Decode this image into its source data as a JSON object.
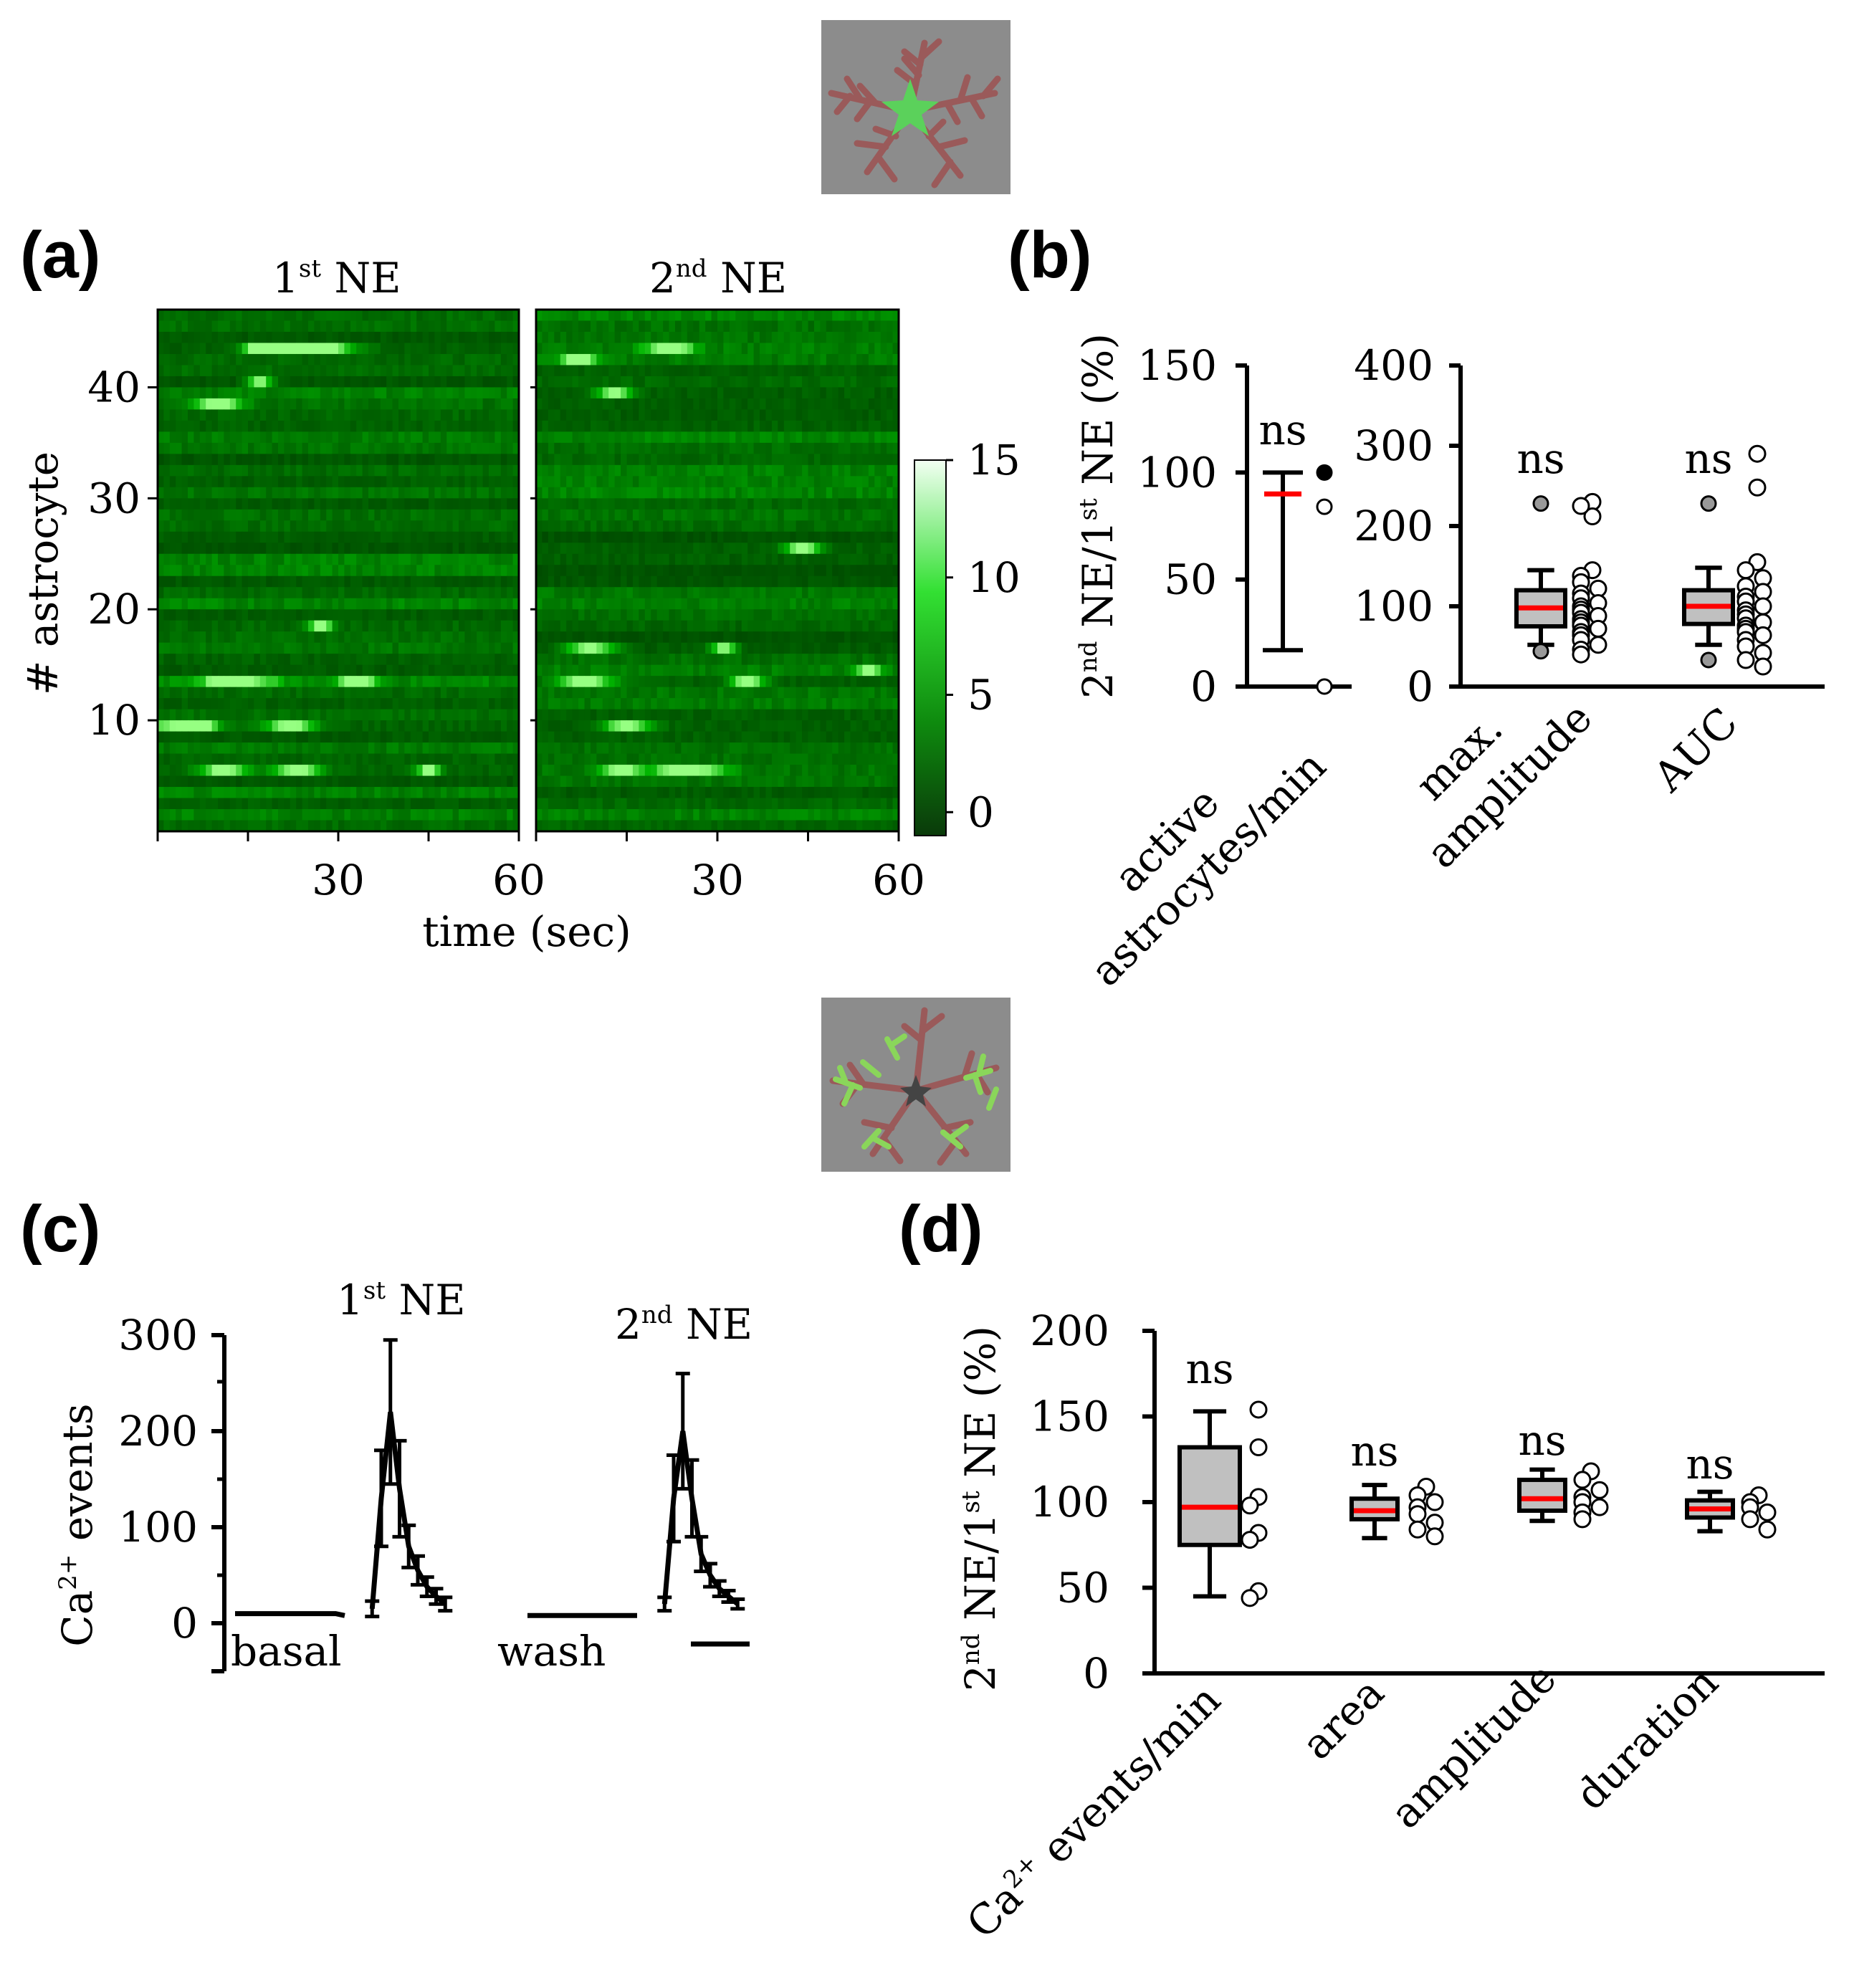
{
  "panels": {
    "a": "(a)",
    "b": "(b)",
    "c": "(c)",
    "d": "(d)"
  },
  "colors": {
    "heat_dark": "#0a3a0a",
    "heat_bright": "#49ff49",
    "median": "#ff0000",
    "box_fill": "#c0c0c0",
    "icon_bg": "#8c8c8c",
    "icon_process": "#9a5a5a",
    "icon_green": "#5bd15b"
  },
  "icons": {
    "top": "astrocyte-soma-icon",
    "bottom": "astrocyte-process-icon"
  },
  "chart_data": [
    {
      "id": "a",
      "type": "heatmap",
      "titles": [
        "1st NE",
        "2nd NE"
      ],
      "title_base": [
        "1",
        "2"
      ],
      "title_sup": [
        "st",
        "nd"
      ],
      "title_rest": [
        " NE",
        " NE"
      ],
      "ylabel": "# astrocyte",
      "xlabel": "time (sec)",
      "xlim": [
        0,
        60
      ],
      "ylim": [
        0,
        47
      ],
      "xticks": [
        0,
        15,
        30,
        45,
        60
      ],
      "xtick_labels": [
        "30",
        "60"
      ],
      "ytick_labels": [
        "10",
        "20",
        "30",
        "40"
      ],
      "yticks": [
        10,
        20,
        30,
        40
      ],
      "n_astrocytes": 47,
      "colorbar": {
        "min": -1,
        "max": 15,
        "tick_labels": [
          "0",
          "5",
          "10",
          "15"
        ],
        "ticks": [
          0,
          5,
          10,
          15
        ]
      },
      "hotspots_1st": [
        [
          7,
          10,
          2
        ],
        [
          17,
          41,
          2
        ],
        [
          4,
          10,
          6
        ],
        [
          22,
          10,
          4
        ],
        [
          13,
          14,
          6
        ],
        [
          10,
          39,
          4
        ],
        [
          20,
          44,
          5
        ],
        [
          11,
          6,
          4
        ],
        [
          23,
          6,
          4
        ],
        [
          27,
          19,
          2
        ],
        [
          45,
          6,
          2
        ],
        [
          33,
          14,
          3
        ],
        [
          18,
          44,
          3
        ],
        [
          28,
          44,
          5
        ]
      ],
      "hotspots_2nd": [
        [
          7,
          43,
          3
        ],
        [
          22,
          44,
          4
        ],
        [
          8,
          14,
          5
        ],
        [
          25,
          6,
          6
        ],
        [
          15,
          10,
          4
        ],
        [
          13,
          40,
          3
        ],
        [
          44,
          26,
          3
        ],
        [
          9,
          17,
          4
        ],
        [
          35,
          14,
          3
        ],
        [
          55,
          15,
          2
        ],
        [
          31,
          17,
          2
        ],
        [
          14,
          6,
          3
        ]
      ]
    },
    {
      "id": "b",
      "type": "box",
      "ylabel_parts": [
        "2",
        "nd",
        " NE/1",
        "st",
        " NE (%)"
      ],
      "subplots": [
        {
          "ylim": [
            0,
            150
          ],
          "yticks": [
            0,
            50,
            100,
            150
          ],
          "ytick_labels": [
            "0",
            "50",
            "100",
            "150"
          ],
          "groups": [
            {
              "label_lines": [
                "active",
                "astrocytes/min"
              ],
              "sig": "ns",
              "min": 17,
              "max": 100,
              "median": 90,
              "points": [
                100,
                84,
                0
              ],
              "filled_point": 100
            }
          ]
        },
        {
          "ylim": [
            0,
            400
          ],
          "yticks": [
            0,
            100,
            200,
            300,
            400
          ],
          "ytick_labels": [
            "0",
            "100",
            "200",
            "300",
            "400"
          ],
          "groups": [
            {
              "label_lines": [
                "max.",
                "amplitude"
              ],
              "sig": "ns",
              "whisker_low": 52,
              "q1": 75,
              "median": 98,
              "q3": 120,
              "whisker_high": 145,
              "outliers": [
                228,
                44
              ],
              "points": [
                230,
                212,
                225,
                145,
                138,
                130,
                122,
                116,
                110,
                104,
                100,
                96,
                92,
                88,
                84,
                80,
                76,
                72,
                68,
                64,
                58,
                52,
                46,
                40
              ]
            },
            {
              "label_lines": [
                "AUC"
              ],
              "sig": "ns",
              "whisker_low": 52,
              "q1": 78,
              "median": 100,
              "q3": 120,
              "whisker_high": 148,
              "outliers": [
                228,
                33
              ],
              "points": [
                290,
                248,
                155,
                145,
                135,
                125,
                118,
                112,
                106,
                100,
                95,
                90,
                85,
                80,
                76,
                72,
                68,
                64,
                58,
                50,
                42,
                33,
                25
              ]
            }
          ]
        }
      ]
    },
    {
      "id": "c",
      "type": "line",
      "ylabel": "Ca2+ events",
      "ylabel_base": "Ca",
      "ylabel_sup": "2+",
      "ylabel_rest": " events",
      "ylim": [
        -50,
        300
      ],
      "yticks": [
        0,
        100,
        200,
        300
      ],
      "ytick_labels": [
        "0",
        "100",
        "200",
        "300"
      ],
      "labels": {
        "first": "1st NE",
        "second": "2nd NE",
        "basal": "basal",
        "wash": "wash"
      },
      "label_parts": {
        "first": [
          "1",
          "st",
          " NE"
        ],
        "second": [
          "2",
          "nd",
          " NE"
        ]
      },
      "series": [
        {
          "name": "basal",
          "x": [
            0,
            1,
            2,
            3,
            4,
            5,
            6,
            7,
            8,
            9,
            10,
            11,
            12
          ],
          "values": [
            10,
            10,
            10,
            10,
            10,
            10,
            10,
            10,
            10,
            10,
            10,
            10,
            8
          ],
          "err": [
            0,
            0,
            0,
            0,
            0,
            0,
            0,
            0,
            0,
            0,
            0,
            0,
            0
          ]
        },
        {
          "name": "1st NE",
          "x": [
            15,
            16,
            17,
            18,
            19,
            20,
            21,
            22,
            23
          ],
          "values": [
            15,
            130,
            220,
            140,
            80,
            55,
            38,
            28,
            20
          ],
          "err": [
            8,
            50,
            75,
            50,
            22,
            15,
            10,
            8,
            7
          ]
        },
        {
          "name": "wash",
          "x": [
            32,
            33,
            34,
            35,
            36,
            37,
            38,
            39,
            40,
            41,
            42,
            43,
            44
          ],
          "values": [
            8,
            8,
            8,
            8,
            8,
            8,
            8,
            8,
            8,
            8,
            8,
            8,
            8
          ],
          "err": [
            0,
            0,
            0,
            0,
            0,
            0,
            0,
            0,
            0,
            0,
            0,
            0,
            0
          ]
        },
        {
          "name": "2nd NE",
          "x": [
            47,
            48,
            49,
            50,
            51,
            52,
            53,
            54,
            55
          ],
          "values": [
            20,
            130,
            200,
            130,
            72,
            50,
            36,
            28,
            20
          ],
          "err": [
            7,
            45,
            60,
            40,
            18,
            12,
            8,
            6,
            5
          ]
        }
      ],
      "scale_bar": true
    },
    {
      "id": "d",
      "type": "box",
      "ylabel_parts": [
        "2",
        "nd",
        " NE/1",
        "st",
        " NE (%)"
      ],
      "ylim": [
        0,
        200
      ],
      "yticks": [
        0,
        50,
        100,
        150,
        200
      ],
      "ytick_labels": [
        "0",
        "50",
        "100",
        "150",
        "200"
      ],
      "groups": [
        {
          "label": "Ca2+ events/min",
          "label_parts": [
            "Ca",
            "2+",
            " events/min"
          ],
          "sig": "ns",
          "whisker_low": 45,
          "q1": 75,
          "median": 97,
          "q3": 132,
          "whisker_high": 153,
          "points": [
            154,
            132,
            103,
            98,
            82,
            78,
            48,
            44
          ]
        },
        {
          "label": "area",
          "sig": "ns",
          "whisker_low": 79,
          "q1": 90,
          "median": 95,
          "q3": 102,
          "whisker_high": 110,
          "points": [
            109,
            104,
            100,
            97,
            93,
            88,
            84,
            80
          ]
        },
        {
          "label": "amplitude",
          "sig": "ns",
          "whisker_low": 89,
          "q1": 95,
          "median": 102,
          "q3": 113,
          "whisker_high": 119,
          "points": [
            118,
            113,
            107,
            103,
            100,
            97,
            94,
            90
          ]
        },
        {
          "label": "duration",
          "sig": "ns",
          "whisker_low": 83,
          "q1": 91,
          "median": 96,
          "q3": 101,
          "whisker_high": 106,
          "points": [
            104,
            100,
            97,
            94,
            90,
            84
          ]
        }
      ]
    }
  ]
}
